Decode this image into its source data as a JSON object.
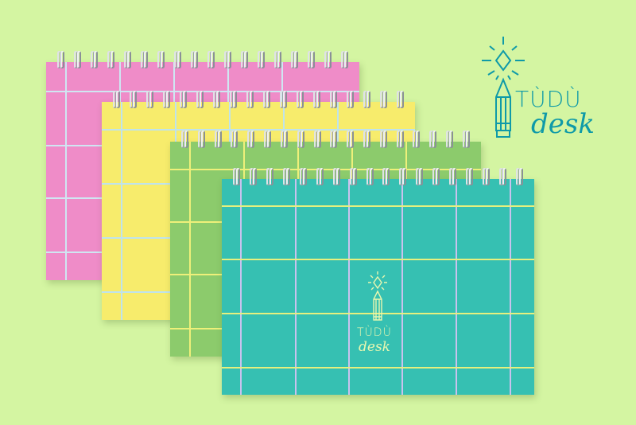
{
  "brand": {
    "line1": "TÙDÙ",
    "line2": "desk",
    "color": "#0f9aa8"
  },
  "cover_logo": {
    "line1": "TÙDÙ",
    "line2": "desk",
    "color": "#e9f7b0"
  },
  "notebooks": [
    {
      "name": "pink",
      "color": "#ef8cc8",
      "line_color": "#cfe6f2"
    },
    {
      "name": "yellow",
      "color": "#f7ec6c",
      "line_color": "#bfe3ec"
    },
    {
      "name": "green",
      "color": "#8ccb6c",
      "line_color": "#eef07a"
    },
    {
      "name": "teal",
      "color": "#36c0b2",
      "line_color": "#e6f07e",
      "vline_color": "#c9c2ee"
    }
  ],
  "background_color": "#d4f5a2"
}
